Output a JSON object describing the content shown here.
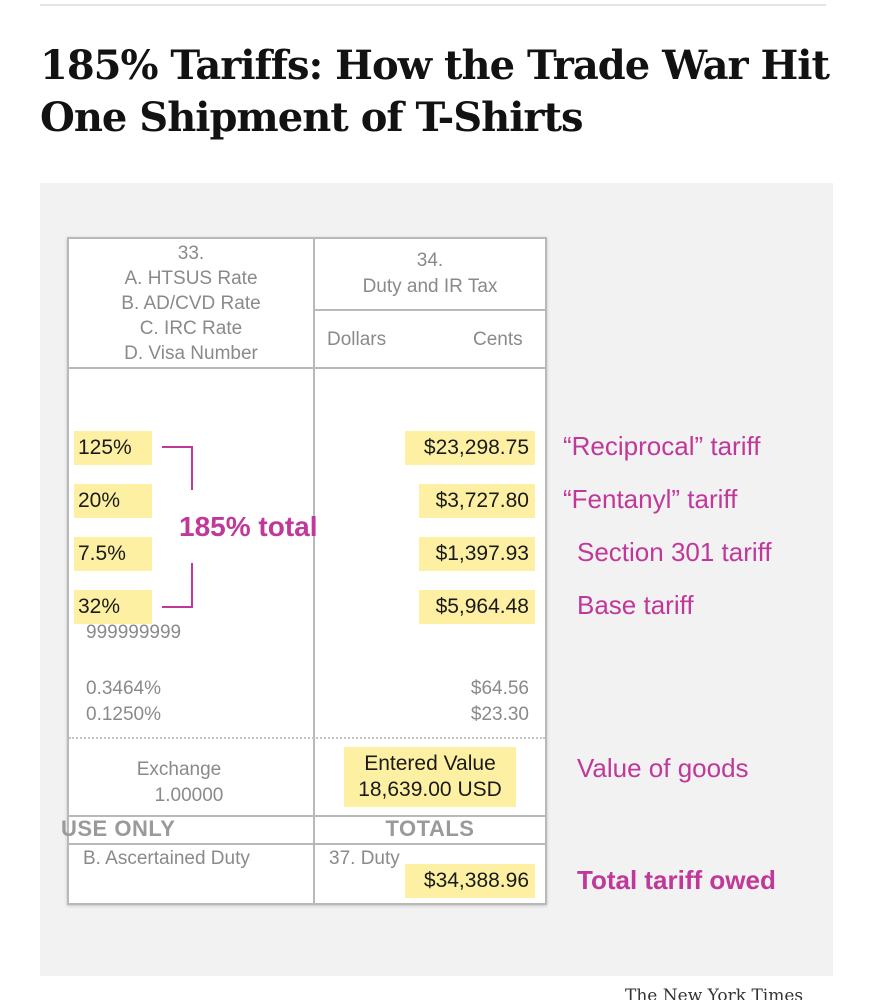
{
  "headline": "185% Tariffs: How the Trade War Hit One Shipment of T-Shirts",
  "form": {
    "col33": {
      "number": "33.",
      "line_a": "A. HTSUS Rate",
      "line_b": "B. AD/CVD Rate",
      "line_c": "C. IRC Rate",
      "line_d": "D. Visa Number"
    },
    "col34": {
      "number": "34.",
      "title": "Duty and IR Tax",
      "dollars": "Dollars",
      "cents": "Cents"
    },
    "rates": [
      "125%",
      "20%",
      "7.5%",
      "32%"
    ],
    "visa_number": "999999999",
    "extra_rates": [
      "0.3464%",
      "0.1250%"
    ],
    "duties": [
      "$23,298.75",
      "$3,727.80",
      "$1,397.93",
      "$5,964.48"
    ],
    "extra_duties": [
      "$64.56",
      "$23.30"
    ],
    "exchange_label": "Exchange",
    "exchange_rate": "1.00000",
    "entered_value_label": "Entered Value",
    "entered_value": "18,639.00 USD",
    "use_only": "USE ONLY",
    "totals": "TOTALS",
    "ascertained_duty": "B. Ascertained Duty",
    "duty_37": "37. Duty",
    "total_duty": "$34,388.96"
  },
  "annotations": {
    "total_rate": "185% total",
    "reciprocal": "“Reciprocal” tariff",
    "fentanyl": "“Fentanyl” tariff",
    "section301": "Section 301 tariff",
    "base": "Base tariff",
    "value_of_goods": "Value of goods",
    "total_owed": "Total tariff owed"
  },
  "credit": "The New York Times",
  "colors": {
    "highlight": "#fdf0a3",
    "annotation": "#c0389a",
    "panel": "#f2f2f2"
  }
}
